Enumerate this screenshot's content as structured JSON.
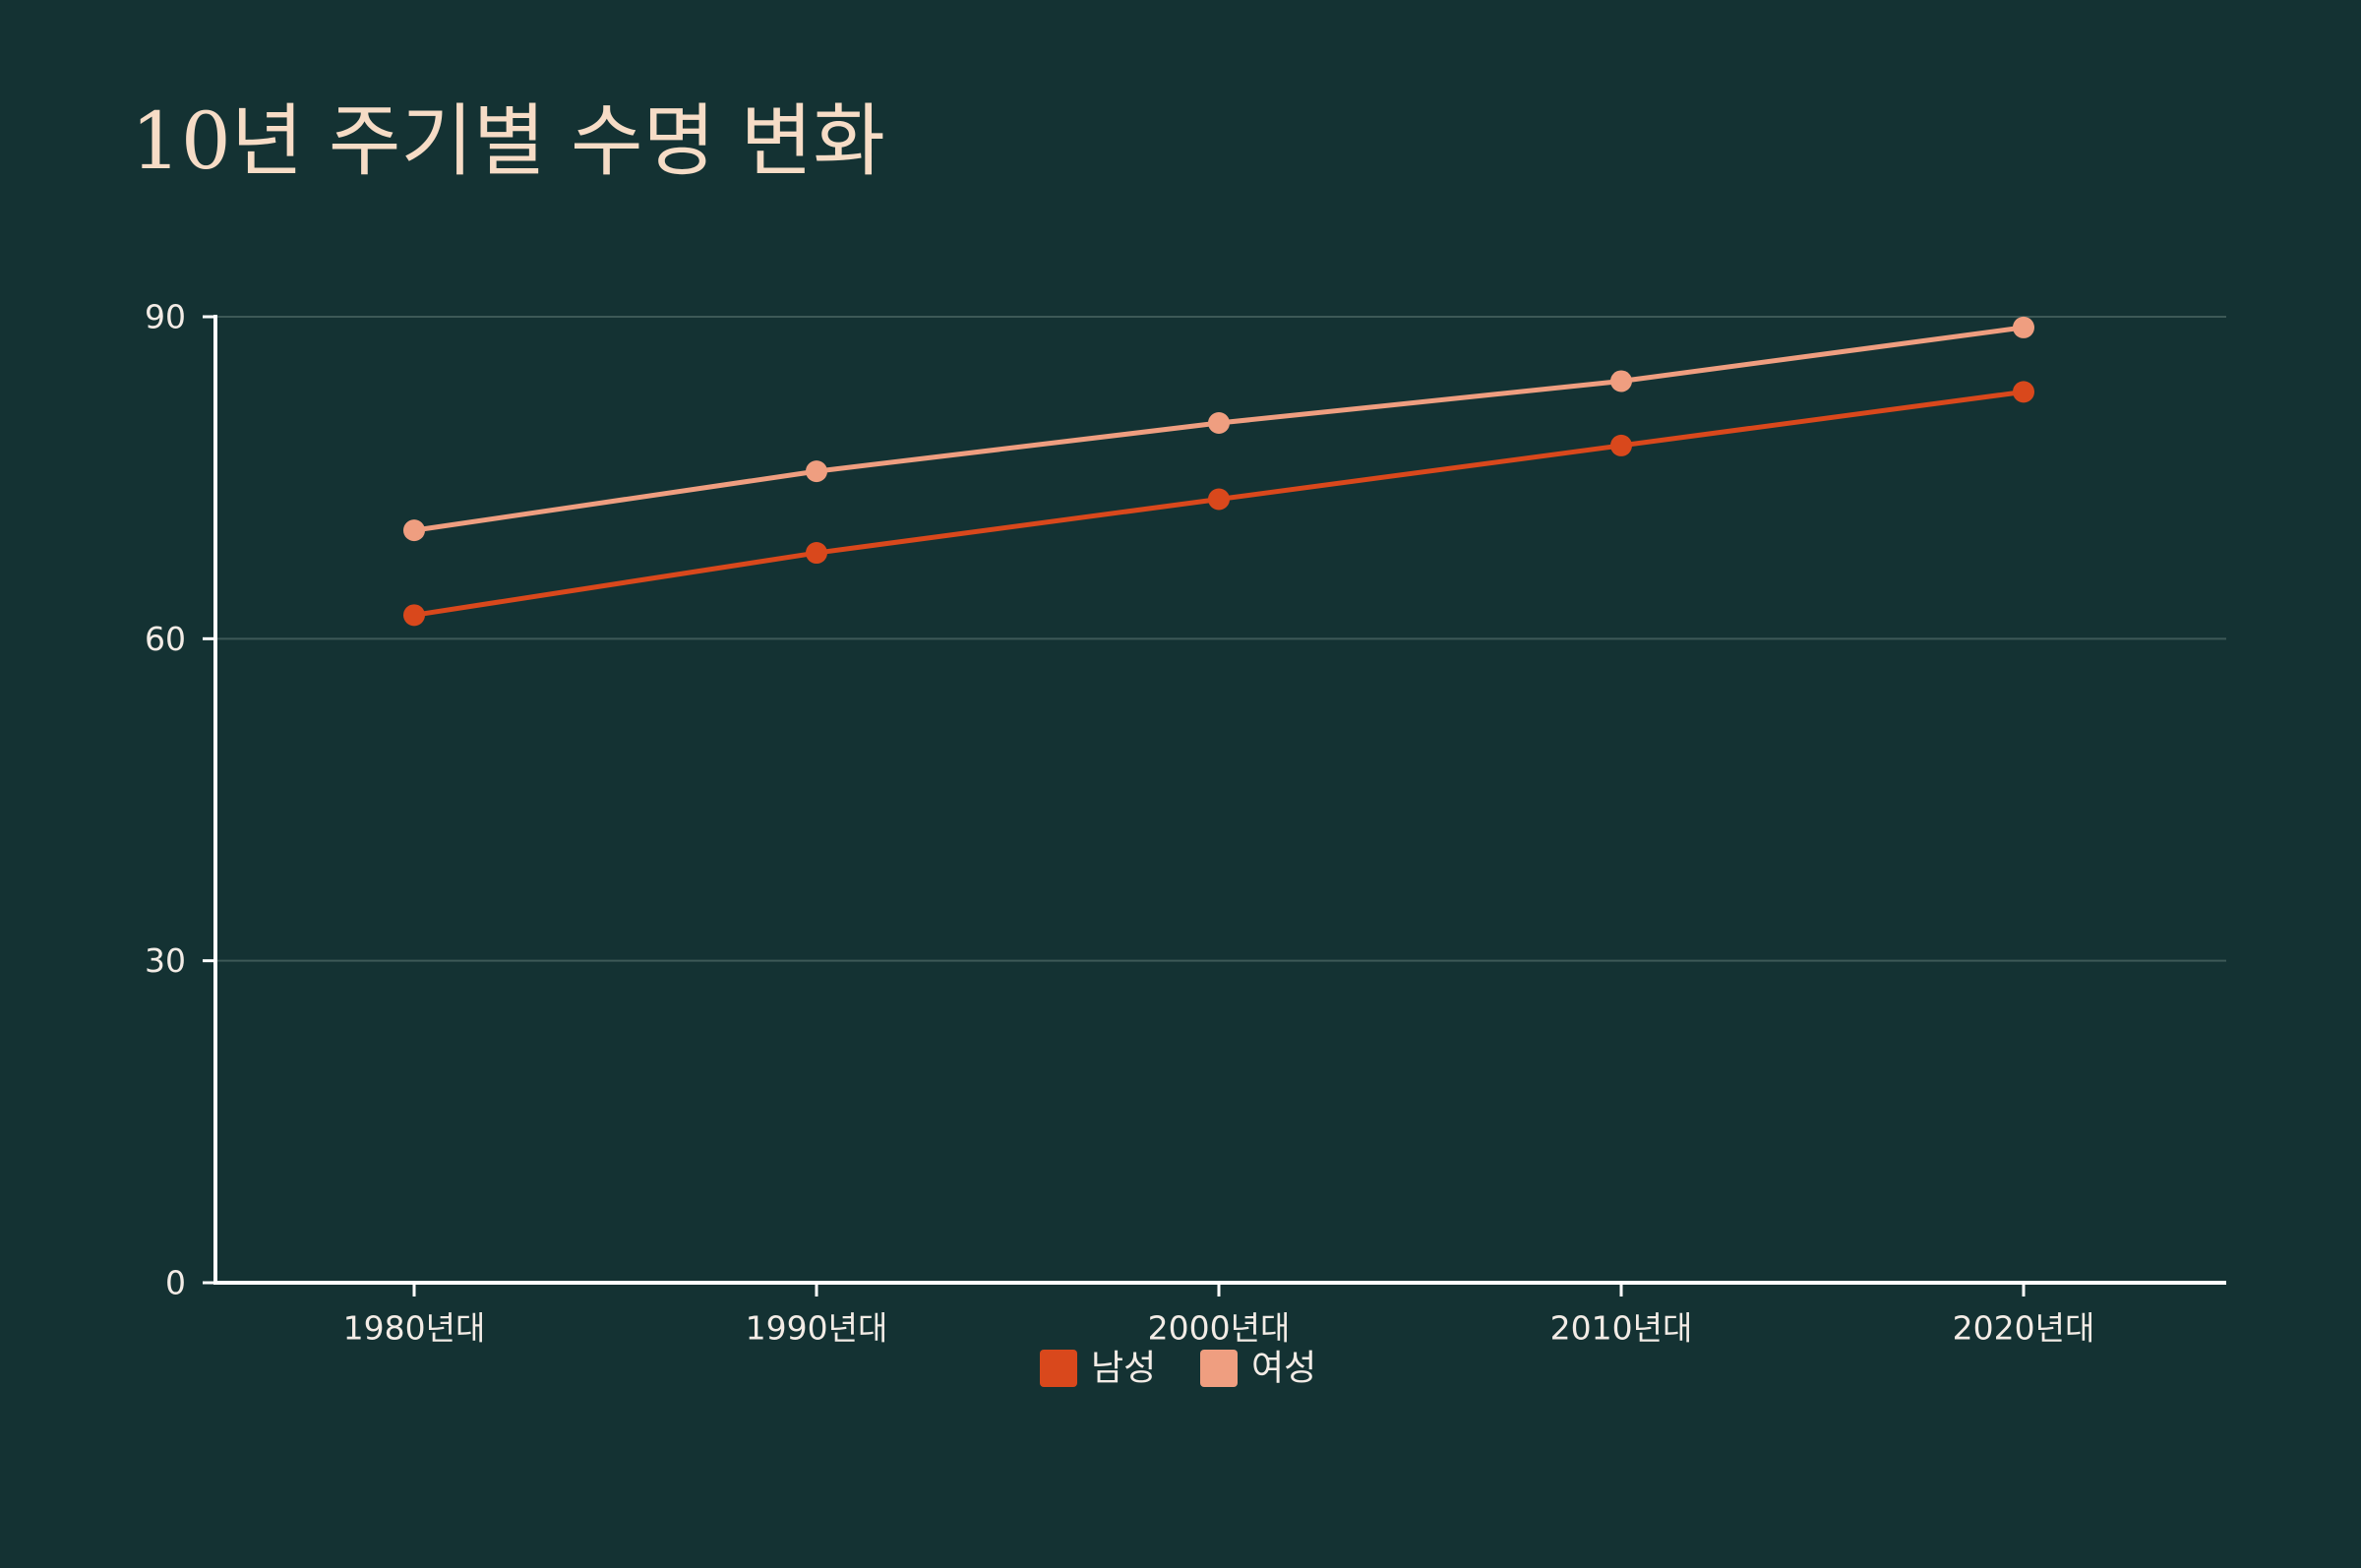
{
  "chart_data": {
    "type": "line",
    "title": "10년 주기별 수명 변화",
    "xlabel": "",
    "ylabel": "",
    "categories": [
      "1980년대",
      "1990년대",
      "2000년대",
      "2010년대",
      "2020년대"
    ],
    "series": [
      {
        "name": "남성",
        "color": "#d9481c",
        "values": [
          62.2,
          68,
          73,
          78,
          83
        ]
      },
      {
        "name": "여성",
        "color": "#ef9e80",
        "values": [
          70.1,
          75.6,
          80.1,
          84,
          89
        ]
      }
    ],
    "ylim": [
      0,
      90
    ],
    "yticks": [
      0,
      30,
      60,
      90
    ],
    "grid": true,
    "legend": "bottom-center",
    "colors": {
      "background": "#143233",
      "axis": "#ffffff",
      "grid": "#3d5957",
      "title": "#f6dcc6",
      "tick_text": "#f3ece6"
    }
  }
}
